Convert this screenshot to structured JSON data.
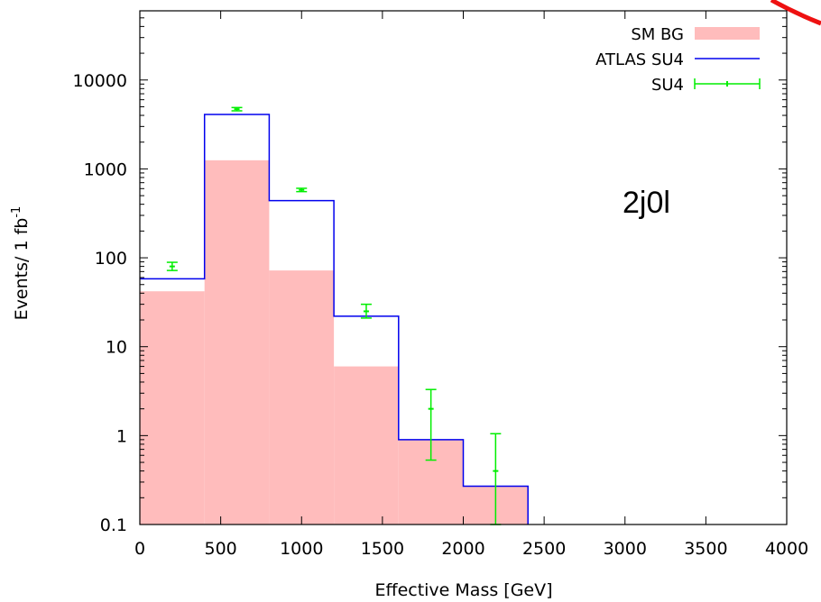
{
  "chart_data": {
    "type": "bar",
    "xlabel": "Effective Mass [GeV]",
    "ylabel": "Events/ 1 fb",
    "ylabel_sup": "-1",
    "xlim": [
      0,
      4000
    ],
    "ylim": [
      0.1,
      60000
    ],
    "yscale": "log",
    "grid": false,
    "legend_position": "top-right",
    "x_ticks": [
      0,
      500,
      1000,
      1500,
      2000,
      2500,
      3000,
      3500,
      4000
    ],
    "y_ticks": [
      {
        "value": 0.1,
        "label": "0.1"
      },
      {
        "value": 1,
        "label": "1"
      },
      {
        "value": 10,
        "label": "10"
      },
      {
        "value": 100,
        "label": "100"
      },
      {
        "value": 1000,
        "label": "1000"
      },
      {
        "value": 10000,
        "label": "10000"
      }
    ],
    "bin_edges": [
      0,
      400,
      800,
      1200,
      1600,
      2000,
      2400
    ],
    "annotation": "2j0l",
    "series": [
      {
        "name": "SM BG",
        "kind": "filled-histogram",
        "color": "#ffbcbc",
        "values": [
          42,
          1250,
          72,
          6,
          0.9,
          0.27
        ]
      },
      {
        "name": "ATLAS SU4",
        "kind": "step-line",
        "color": "#0000ee",
        "values": [
          58,
          4100,
          440,
          22,
          0.9,
          0.27
        ]
      },
      {
        "name": "SU4",
        "kind": "points-with-errors",
        "color": "#00ee00",
        "points": [
          {
            "x": 200,
            "y": 80,
            "lo": 72,
            "hi": 89
          },
          {
            "x": 600,
            "y": 4700,
            "lo": 4500,
            "hi": 4900
          },
          {
            "x": 1000,
            "y": 580,
            "lo": 555,
            "hi": 605
          },
          {
            "x": 1400,
            "y": 25,
            "lo": 21,
            "hi": 30
          },
          {
            "x": 1800,
            "y": 2,
            "lo": 0.53,
            "hi": 3.3
          },
          {
            "x": 2200,
            "y": 0.4,
            "lo": 0.1,
            "hi": 1.05
          }
        ]
      }
    ]
  }
}
